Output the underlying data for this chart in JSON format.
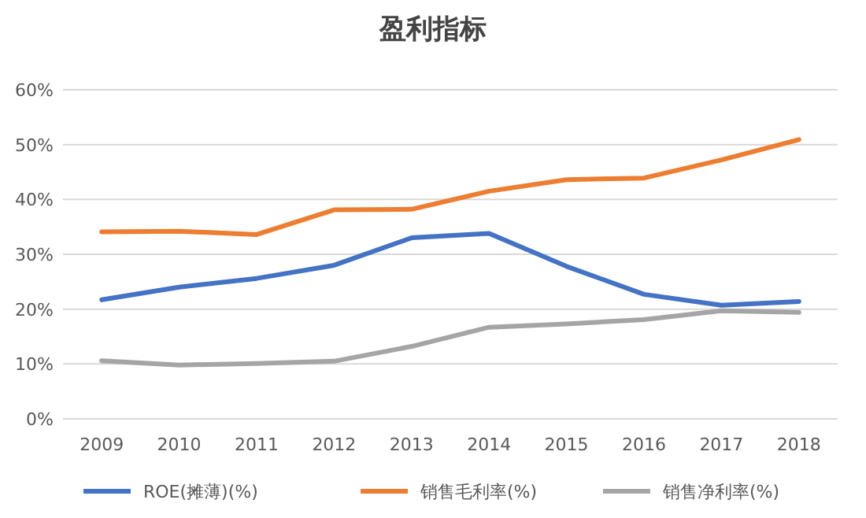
{
  "chart_data": {
    "type": "line",
    "title": "盈利指标",
    "categories": [
      "2009",
      "2010",
      "2011",
      "2012",
      "2013",
      "2014",
      "2015",
      "2016",
      "2017",
      "2018"
    ],
    "series": [
      {
        "name": "ROE(摊薄)(%)",
        "color": "#4472c4",
        "values": [
          21.7,
          24,
          25.6,
          28,
          33,
          33.8,
          27.8,
          22.7,
          20.7,
          21.4
        ]
      },
      {
        "name": "销售毛利率(%)",
        "color": "#ed7d31",
        "values": [
          34.1,
          34.2,
          33.6,
          38.1,
          38.2,
          41.5,
          43.6,
          43.9,
          47.2,
          50.9
        ]
      },
      {
        "name": "销售净利率(%)",
        "color": "#a5a5a5",
        "values": [
          10.6,
          9.8,
          10.1,
          10.5,
          13.2,
          16.7,
          17.3,
          18.1,
          19.7,
          19.4
        ]
      }
    ],
    "ylim": [
      0,
      60
    ],
    "yticks": [
      {
        "value": 0,
        "label": "0%"
      },
      {
        "value": 10,
        "label": "10%"
      },
      {
        "value": 20,
        "label": "20%"
      },
      {
        "value": 30,
        "label": "30%"
      },
      {
        "value": 40,
        "label": "40%"
      },
      {
        "value": 50,
        "label": "50%"
      },
      {
        "value": 60,
        "label": "60%"
      }
    ],
    "grid": "y",
    "legend": "bottom",
    "line_style": "solid",
    "marker": "none"
  }
}
